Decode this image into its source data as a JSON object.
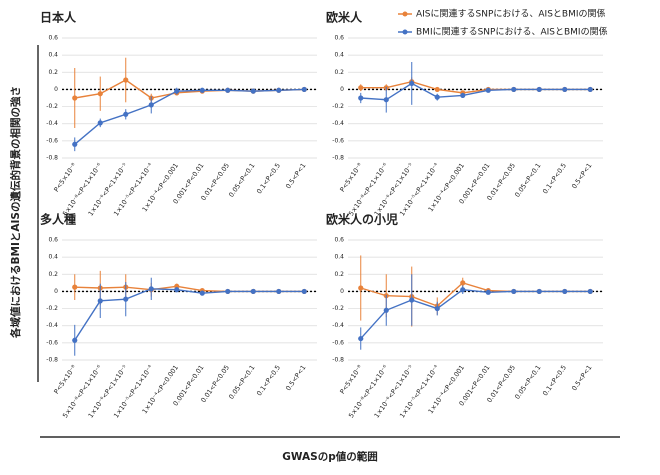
{
  "ylabel": "各域値におけるBMIとAISの遺伝的背景の相関の強さ",
  "xlabel": "GWASのp値の範囲",
  "legend": [
    {
      "name": "AISに関連するSNPにおける、AISとBMIの関係",
      "color": "#e8823a"
    },
    {
      "name": "BMIに関連するSNPにおける、AISとBMIの関係",
      "color": "#4472c4"
    }
  ],
  "chart_data": [
    {
      "type": "line",
      "title": "日本人",
      "categories": [
        "P<5×10⁻⁸",
        "5×10⁻⁸<P<1×10⁻⁶",
        "1×10⁻⁶<P<1×10⁻⁵",
        "1×10⁻⁵<P<1×10⁻⁴",
        "1×10⁻⁴<P<0.001",
        "0.001<P<0.01",
        "0.01<P<0.05",
        "0.05<P<0.1",
        "0.1<P<0.5",
        "0.5<P<1"
      ],
      "ylim": [
        -0.8,
        0.6
      ],
      "yticks": [
        0.6,
        0.4,
        0.2,
        0,
        -0.2,
        -0.4,
        -0.6,
        -0.8
      ],
      "series": [
        {
          "values": [
            -0.1,
            -0.05,
            0.11,
            -0.1,
            -0.04,
            -0.02,
            -0.01,
            -0.02,
            -0.01,
            0
          ],
          "errors": [
            0.35,
            0.2,
            0.26,
            0.05,
            0.02,
            0.01,
            0.01,
            0.01,
            0.01,
            0.01
          ]
        },
        {
          "values": [
            -0.64,
            -0.39,
            -0.29,
            -0.18,
            -0.02,
            -0.01,
            -0.01,
            -0.02,
            -0.01,
            0
          ],
          "errors": [
            0.08,
            0.05,
            0.06,
            0.1,
            0.04,
            0.01,
            0.01,
            0.01,
            0.01,
            0.01
          ]
        }
      ]
    },
    {
      "type": "line",
      "title": "欧米人",
      "categories": [
        "P<5×10⁻⁸",
        "5×10⁻⁸<P<1×10⁻⁶",
        "1×10⁻⁶<P<1×10⁻⁵",
        "1×10⁻⁵<P<1×10⁻⁴",
        "1×10⁻⁴<P<0.001",
        "0.001<P<0.01",
        "0.01<P<0.05",
        "0.05<P<0.1",
        "0.1<P<0.5",
        "0.5<P<1"
      ],
      "ylim": [
        -0.8,
        0.6
      ],
      "yticks": [
        0.6,
        0.4,
        0.2,
        0,
        -0.2,
        -0.4,
        -0.6,
        -0.8
      ],
      "series": [
        {
          "values": [
            0.02,
            0.02,
            0.09,
            0,
            -0.04,
            0,
            0,
            0,
            0,
            0
          ],
          "errors": [
            0.04,
            0.04,
            0.05,
            0.02,
            0.02,
            0.01,
            0.01,
            0.01,
            0.01,
            0.01
          ]
        },
        {
          "values": [
            -0.1,
            -0.12,
            0.07,
            -0.09,
            -0.07,
            -0.01,
            0,
            0,
            0,
            0
          ],
          "errors": [
            0.06,
            0.15,
            0.25,
            0.04,
            0.03,
            0.01,
            0.01,
            0.01,
            0.01,
            0.01
          ]
        }
      ]
    },
    {
      "type": "line",
      "title": "多人種",
      "categories": [
        "P<5×10⁻⁸",
        "5×10⁻⁸<P<1×10⁻⁶",
        "1×10⁻⁶<P<1×10⁻⁵",
        "1×10⁻⁵<P<1×10⁻⁴",
        "1×10⁻⁴<P<0.001",
        "0.001<P<0.01",
        "0.01<P<0.05",
        "0.05<P<0.1",
        "0.1<P<0.5",
        "0.5<P<1"
      ],
      "ylim": [
        -0.8,
        0.6
      ],
      "yticks": [
        0.6,
        0.4,
        0.2,
        0,
        -0.2,
        -0.4,
        -0.6,
        -0.8
      ],
      "series": [
        {
          "values": [
            0.05,
            0.04,
            0.05,
            0.02,
            0.06,
            0.01,
            0,
            0,
            0,
            0
          ],
          "errors": [
            0.15,
            0.2,
            0.15,
            0.08,
            0.03,
            0.01,
            0.01,
            0.01,
            0.01,
            0.01
          ]
        },
        {
          "values": [
            -0.57,
            -0.11,
            -0.09,
            0.03,
            0.02,
            -0.02,
            0,
            0,
            0,
            0
          ],
          "errors": [
            0.18,
            0.2,
            0.2,
            0.13,
            0.03,
            0.01,
            0.01,
            0.01,
            0.01,
            0.01
          ]
        }
      ]
    },
    {
      "type": "line",
      "title": "欧米人の小児",
      "categories": [
        "P<5×10⁻⁸",
        "5×10⁻⁸<P<1×10⁻⁶",
        "1×10⁻⁶<P<1×10⁻⁵",
        "1×10⁻⁵<P<1×10⁻⁴",
        "1×10⁻⁴<P<0.001",
        "0.001<P<0.01",
        "0.01<P<0.05",
        "0.05<P<0.1",
        "0.1<P<0.5",
        "0.5<P<1"
      ],
      "ylim": [
        -0.8,
        0.6
      ],
      "yticks": [
        0.6,
        0.4,
        0.2,
        0,
        -0.2,
        -0.4,
        -0.6,
        -0.8
      ],
      "series": [
        {
          "values": [
            0.04,
            -0.05,
            -0.06,
            -0.17,
            0.1,
            0.01,
            0,
            0,
            0,
            0
          ],
          "errors": [
            0.38,
            0.25,
            0.35,
            0.1,
            0.06,
            0.01,
            0.01,
            0.01,
            0.01,
            0.01
          ]
        },
        {
          "values": [
            -0.55,
            -0.22,
            -0.1,
            -0.2,
            0.02,
            -0.01,
            0,
            0,
            0,
            0
          ],
          "errors": [
            0.13,
            0.18,
            0.3,
            0.08,
            0.05,
            0.01,
            0.01,
            0.01,
            0.01,
            0.01
          ]
        }
      ]
    }
  ]
}
